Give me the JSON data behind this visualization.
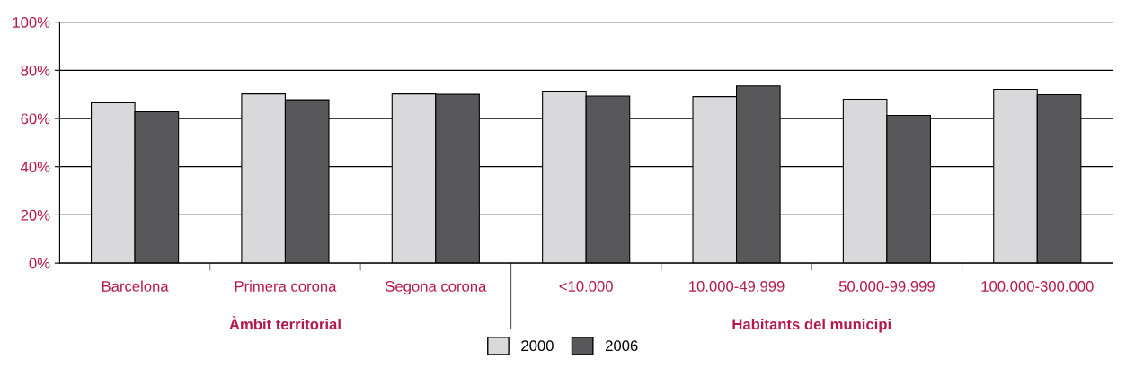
{
  "chart_data": {
    "type": "bar",
    "categories": [
      "Barcelona",
      "Primera corona",
      "Segona corona",
      "<10.000",
      "10.000-49.999",
      "50.000-99.999",
      "100.000-300.000"
    ],
    "series": [
      {
        "name": "2000",
        "color": "#d9d9db",
        "values": [
          66.5,
          70.2,
          70.2,
          71.3,
          69.1,
          68.0,
          72.1
        ]
      },
      {
        "name": "2006",
        "color": "#58585a",
        "values": [
          62.8,
          67.8,
          70.0,
          69.3,
          73.5,
          61.3,
          69.9
        ]
      }
    ],
    "ylim": [
      0,
      100
    ],
    "yticks": [
      {
        "value": 0,
        "label": "0%"
      },
      {
        "value": 20,
        "label": "20%"
      },
      {
        "value": 40,
        "label": "40%"
      },
      {
        "value": 60,
        "label": "60%"
      },
      {
        "value": 80,
        "label": "80%"
      },
      {
        "value": 100,
        "label": "100%"
      }
    ],
    "grid": "y",
    "legend": "bottom",
    "annotations": [
      "Àmbit territorial",
      "Habitants del municipi"
    ]
  }
}
